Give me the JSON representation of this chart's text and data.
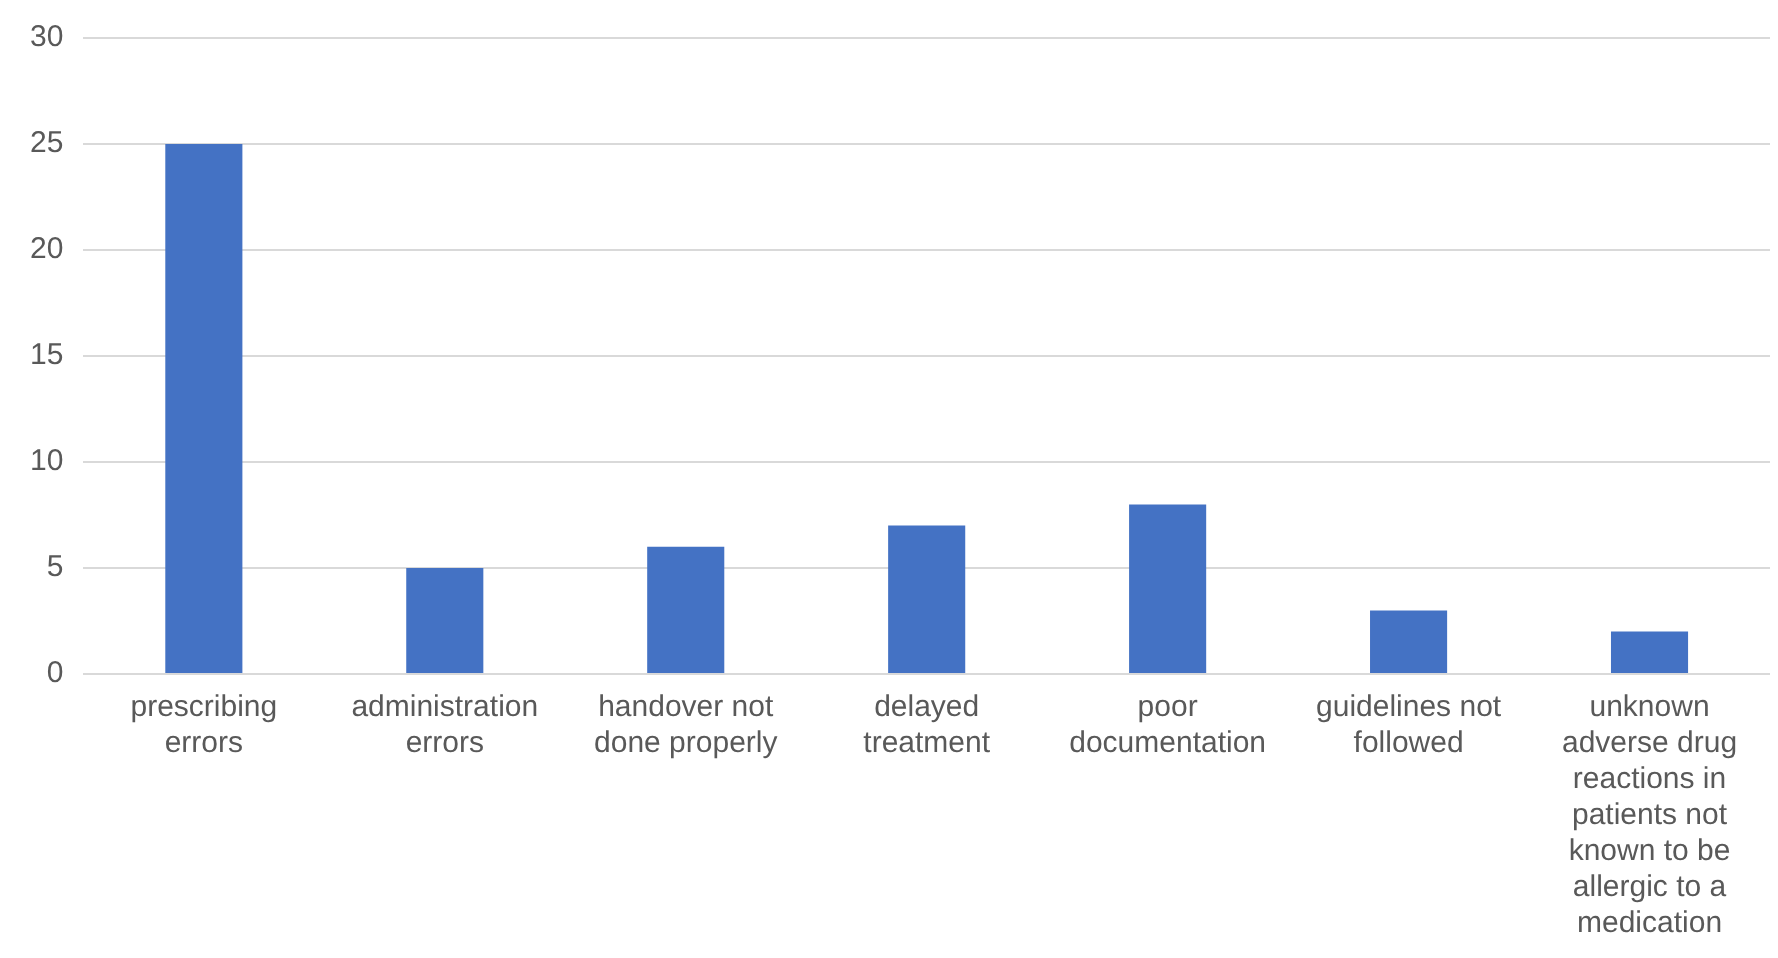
{
  "chart_data": {
    "type": "bar",
    "categories": [
      "prescribing errors",
      "administration errors",
      "handover not done properly",
      "delayed treatment",
      "poor documentation",
      "guidelines not followed",
      "unknown adverse drug reactions in patients not known to be allergic to a medication"
    ],
    "values": [
      25,
      5,
      6,
      7,
      8,
      3,
      2
    ],
    "color": "#4472c4",
    "ylim": [
      0,
      30
    ],
    "yticks": [
      0,
      5,
      10,
      15,
      20,
      25,
      30
    ],
    "grid": "y"
  }
}
